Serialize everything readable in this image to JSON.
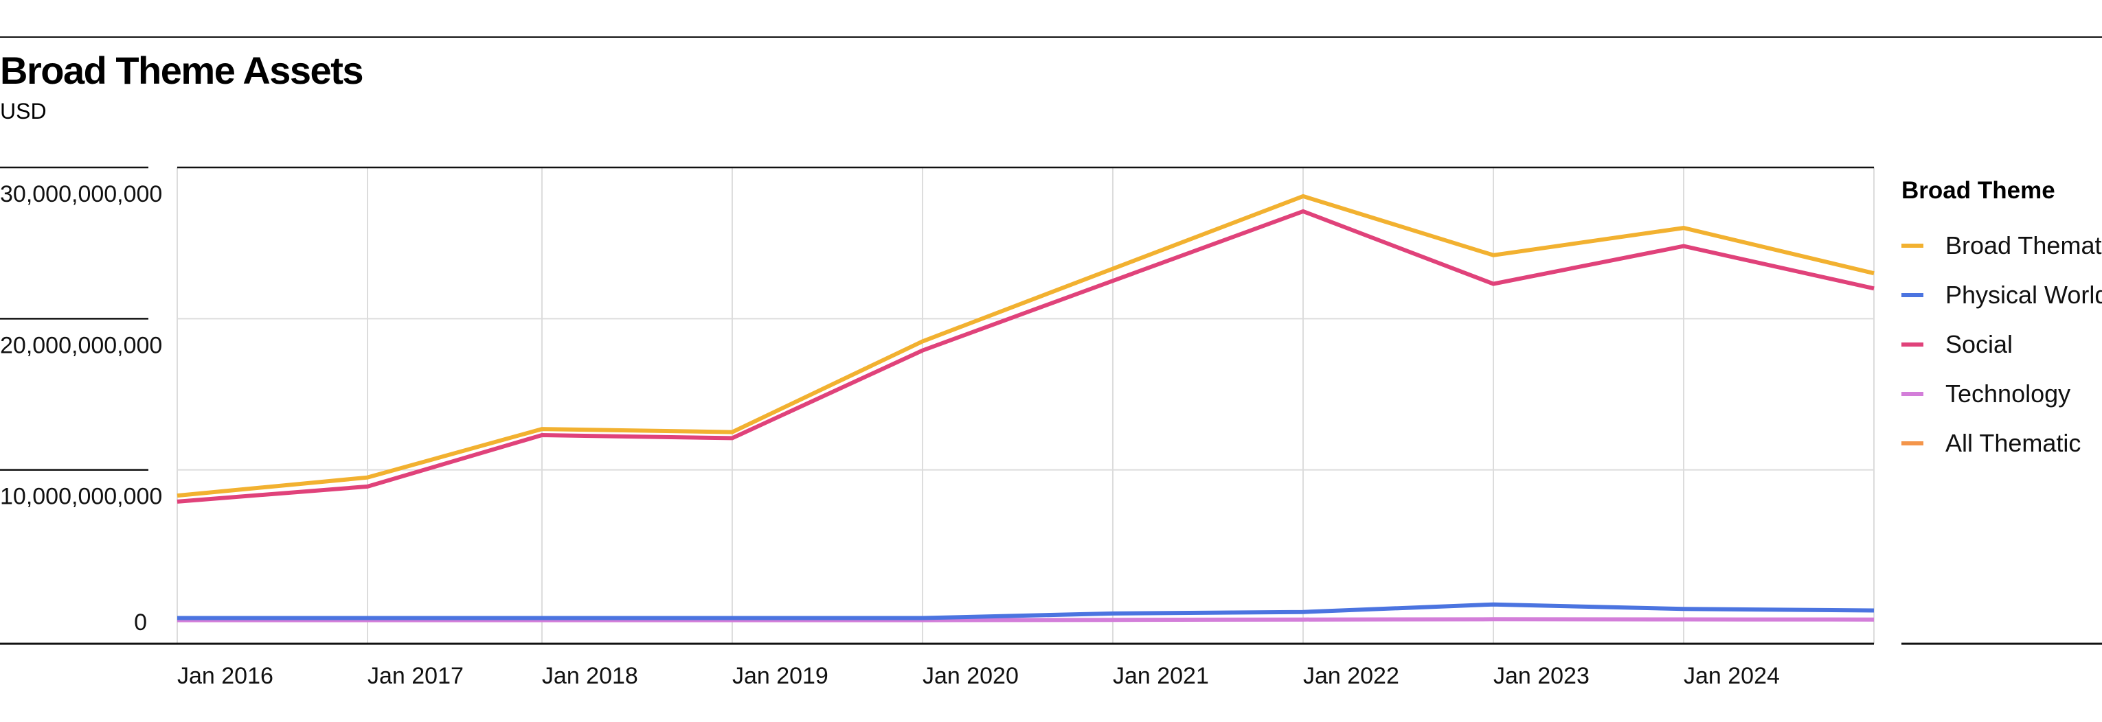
{
  "header": {
    "title": "Broad Theme Assets",
    "subtitle": "USD"
  },
  "legend": {
    "title": "Broad Theme",
    "items": [
      {
        "label": "Broad Thematic",
        "color": "#F2B130"
      },
      {
        "label": "Physical World",
        "color": "#4B74E0"
      },
      {
        "label": "Social",
        "color": "#E0427A"
      },
      {
        "label": "Technology",
        "color": "#D37ED9"
      },
      {
        "label": "All Thematic",
        "color": "#F4954A"
      }
    ]
  },
  "chart_data": {
    "type": "line",
    "title": "Broad Theme Assets",
    "subtitle": "USD",
    "xlabel": "",
    "ylabel": "",
    "x": [
      "2016-01",
      "2017-01",
      "2017-12",
      "2018-12",
      "2019-12",
      "2020-12",
      "2021-12",
      "2022-12",
      "2023-12",
      "2024-12"
    ],
    "x_tick_labels": [
      "Jan 2016",
      "Jan 2017",
      "Jan 2018",
      "Jan 2019",
      "Jan 2020",
      "Jan 2021",
      "Jan 2022",
      "Jan 2023",
      "Jan 2024"
    ],
    "y_tick_values": [
      0,
      10000000000,
      20000000000,
      30000000000
    ],
    "y_tick_labels": [
      "0",
      "10,000,000,000",
      "20,000,000,000",
      "30,000,000,000"
    ],
    "ylim": [
      -1500000000,
      30000000000
    ],
    "grid": true,
    "legend_position": "right",
    "series": [
      {
        "name": "Broad Thematic",
        "color": "#F2B130",
        "values": [
          8300000000,
          9500000000,
          12700000000,
          12500000000,
          18500000000,
          23300000000,
          28100000000,
          24200000000,
          26000000000,
          23000000000
        ]
      },
      {
        "name": "Physical World",
        "color": "#4B74E0",
        "values": [
          200000000,
          200000000,
          200000000,
          200000000,
          200000000,
          500000000,
          600000000,
          1100000000,
          800000000,
          700000000
        ]
      },
      {
        "name": "Social",
        "color": "#E0427A",
        "values": [
          7900000000,
          8900000000,
          12300000000,
          12100000000,
          17900000000,
          22500000000,
          27100000000,
          22300000000,
          24800000000,
          22000000000
        ]
      },
      {
        "name": "Technology",
        "color": "#D37ED9",
        "values": [
          60000000,
          60000000,
          60000000,
          60000000,
          60000000,
          80000000,
          100000000,
          120000000,
          110000000,
          100000000
        ]
      },
      {
        "name": "All Thematic",
        "color": "#F4954A",
        "values": [
          null,
          null,
          null,
          null,
          null,
          null,
          null,
          null,
          null,
          null
        ]
      }
    ]
  }
}
